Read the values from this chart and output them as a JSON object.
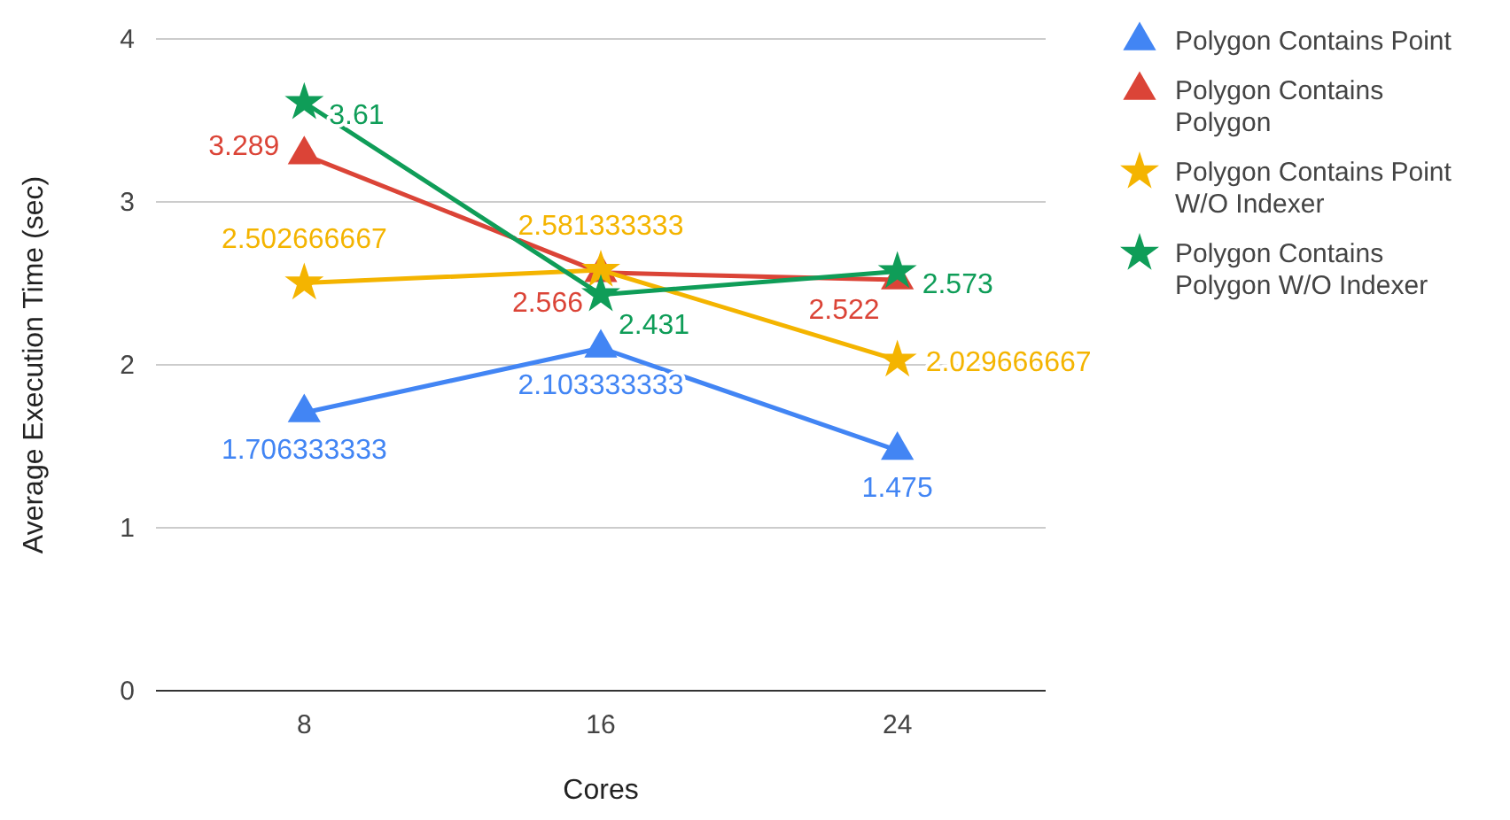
{
  "chart_data": {
    "type": "line",
    "xlabel": "Cores",
    "ylabel": "Average Execution Time (sec)",
    "categories": [
      "8",
      "16",
      "24"
    ],
    "ylim": [
      0,
      4
    ],
    "yticks": [
      0,
      1,
      2,
      3,
      4
    ],
    "grid": "y",
    "legend": "top right",
    "data_labels": true,
    "series": [
      {
        "name": "Polygon Contains Point",
        "color": "#4285f4",
        "marker": "triangle",
        "values": [
          1.706333333,
          2.103333333,
          1.475
        ]
      },
      {
        "name": "Polygon Contains Polygon",
        "color": "#db4437",
        "marker": "triangle",
        "values": [
          3.289,
          2.566,
          2.522
        ]
      },
      {
        "name": "Polygon Contains Point W/O Indexer",
        "color": "#f4b400",
        "marker": "star",
        "values": [
          2.502666667,
          2.581333333,
          2.029666667
        ]
      },
      {
        "name": "Polygon Contains Polygon W/O Indexer",
        "color": "#0f9d58",
        "marker": "star",
        "values": [
          3.61,
          2.431,
          2.573
        ]
      }
    ]
  }
}
